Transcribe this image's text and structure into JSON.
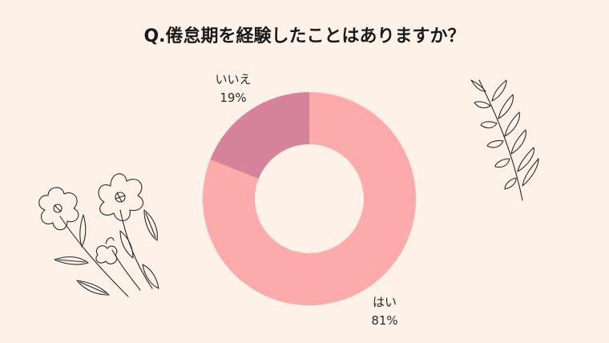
{
  "chart_data": {
    "type": "pie",
    "title": "Q.倦怠期を経験したことはありますか？",
    "slices": [
      {
        "label": "はい",
        "value": 81,
        "value_text": "81%",
        "color": "#fdaaaa"
      },
      {
        "label": "いいえ",
        "value": 19,
        "value_text": "19%",
        "color": "#d4839a"
      }
    ],
    "donut": true,
    "legend": "none"
  },
  "decorations": {
    "left": "flower-line-drawing-icon",
    "right": "leaf-sprig-line-drawing-icon"
  }
}
